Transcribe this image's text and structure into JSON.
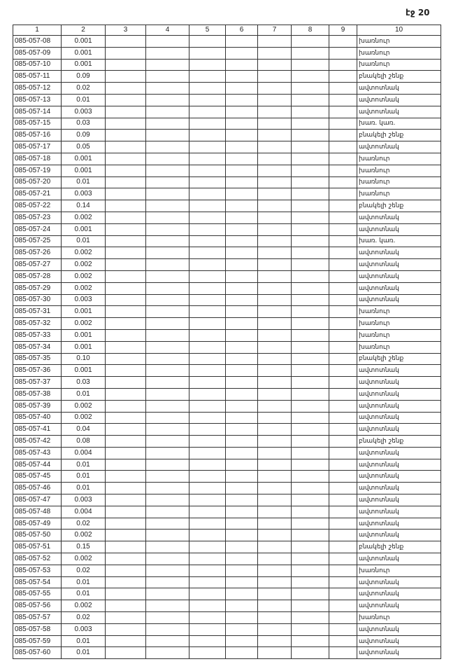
{
  "page_label": "էջ 20",
  "columns": [
    "1",
    "2",
    "3",
    "4",
    "5",
    "6",
    "7",
    "8",
    "9",
    "10"
  ],
  "rows": [
    [
      "085-057-08",
      "0.001",
      "խառնուր"
    ],
    [
      "085-057-09",
      "0.001",
      "խառնուր"
    ],
    [
      "085-057-10",
      "0.001",
      "խառնուր"
    ],
    [
      "085-057-11",
      "0.09",
      "բնակելի շենք"
    ],
    [
      "085-057-12",
      "0.02",
      "ավտոտնակ"
    ],
    [
      "085-057-13",
      "0.01",
      "ավտոտնակ"
    ],
    [
      "085-057-14",
      "0.003",
      "ավտոտնակ"
    ],
    [
      "085-057-15",
      "0.03",
      "խառ. կառ."
    ],
    [
      "085-057-16",
      "0.09",
      "բնակելի շենք"
    ],
    [
      "085-057-17",
      "0.05",
      "ավտոտնակ"
    ],
    [
      "085-057-18",
      "0.001",
      "խառնուր"
    ],
    [
      "085-057-19",
      "0.001",
      "խառնուր"
    ],
    [
      "085-057-20",
      "0.01",
      "խառնուր"
    ],
    [
      "085-057-21",
      "0.003",
      "խառնուր"
    ],
    [
      "085-057-22",
      "0.14",
      "բնակելի շենք"
    ],
    [
      "085-057-23",
      "0.002",
      "ավտոտնակ"
    ],
    [
      "085-057-24",
      "0.001",
      "ավտոտնակ"
    ],
    [
      "085-057-25",
      "0.01",
      "խառ. կառ."
    ],
    [
      "085-057-26",
      "0.002",
      "ավտոտնակ"
    ],
    [
      "085-057-27",
      "0.002",
      "ավտոտնակ"
    ],
    [
      "085-057-28",
      "0.002",
      "ավտոտնակ"
    ],
    [
      "085-057-29",
      "0.002",
      "ավտոտնակ"
    ],
    [
      "085-057-30",
      "0.003",
      "ավտոտնակ"
    ],
    [
      "085-057-31",
      "0.001",
      "խառնուր"
    ],
    [
      "085-057-32",
      "0.002",
      "խառնուր"
    ],
    [
      "085-057-33",
      "0.001",
      "խառնուր"
    ],
    [
      "085-057-34",
      "0.001",
      "խառնուր"
    ],
    [
      "085-057-35",
      "0.10",
      "բնակելի շենք"
    ],
    [
      "085-057-36",
      "0.001",
      "ավտոտնակ"
    ],
    [
      "085-057-37",
      "0.03",
      "ավտոտնակ"
    ],
    [
      "085-057-38",
      "0.01",
      "ավտոտնակ"
    ],
    [
      "085-057-39",
      "0.002",
      "ավտոտնակ"
    ],
    [
      "085-057-40",
      "0.002",
      "ավտոտնակ"
    ],
    [
      "085-057-41",
      "0.04",
      "ավտոտնակ"
    ],
    [
      "085-057-42",
      "0.08",
      "բնակելի շենք"
    ],
    [
      "085-057-43",
      "0.004",
      "ավտոտնակ"
    ],
    [
      "085-057-44",
      "0.01",
      "ավտոտնակ"
    ],
    [
      "085-057-45",
      "0.01",
      "ավտոտնակ"
    ],
    [
      "085-057-46",
      "0.01",
      "ավտոտնակ"
    ],
    [
      "085-057-47",
      "0.003",
      "ավտոտնակ"
    ],
    [
      "085-057-48",
      "0.004",
      "ավտոտնակ"
    ],
    [
      "085-057-49",
      "0.02",
      "ավտոտնակ"
    ],
    [
      "085-057-50",
      "0.002",
      "ավտոտնակ"
    ],
    [
      "085-057-51",
      "0.15",
      "բնակելի շենք"
    ],
    [
      "085-057-52",
      "0.002",
      "ավտոտնակ"
    ],
    [
      "085-057-53",
      "0.02",
      "խառնուր"
    ],
    [
      "085-057-54",
      "0.01",
      "ավտոտնակ"
    ],
    [
      "085-057-55",
      "0.01",
      "ավտոտնակ"
    ],
    [
      "085-057-56",
      "0.002",
      "ավտոտնակ"
    ],
    [
      "085-057-57",
      "0.02",
      "խառնուր"
    ],
    [
      "085-057-58",
      "0.003",
      "ավտոտնակ"
    ],
    [
      "085-057-59",
      "0.01",
      "ավտոտնակ"
    ],
    [
      "085-057-60",
      "0.01",
      "ավտոտնակ"
    ]
  ]
}
